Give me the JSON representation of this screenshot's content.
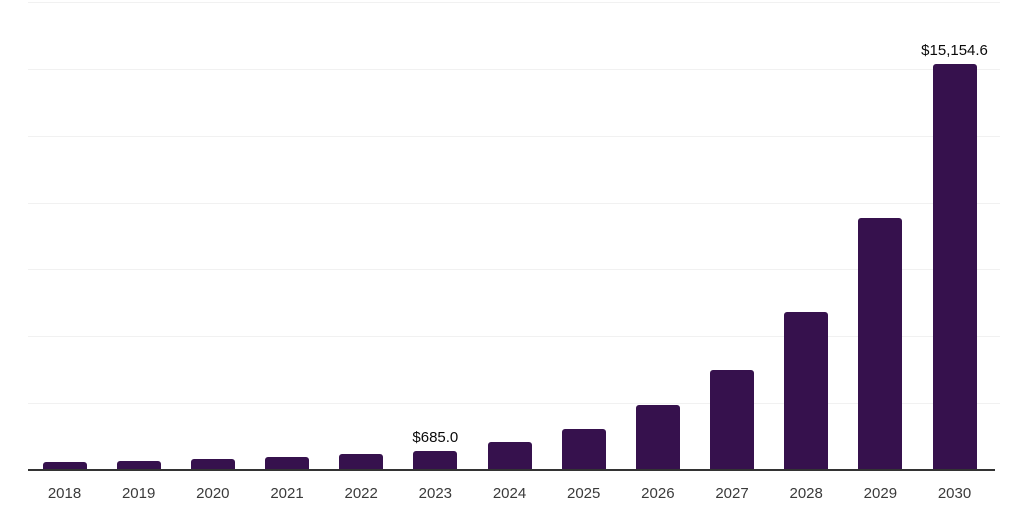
{
  "chart_data": {
    "type": "bar",
    "title": "",
    "xlabel": "",
    "ylabel": "",
    "categories": [
      "2018",
      "2019",
      "2020",
      "2021",
      "2022",
      "2023",
      "2024",
      "2025",
      "2026",
      "2027",
      "2028",
      "2029",
      "2030"
    ],
    "values": [
      250,
      290,
      365,
      440,
      550,
      685.0,
      1010,
      1515,
      2380,
      3700,
      5860,
      9400,
      15154.6
    ],
    "data_labels": {
      "2023": "$685.0",
      "2030": "$15,154.6"
    },
    "ylim": [
      0,
      17500
    ],
    "gridline_step": 2500,
    "grid": "horizontal-only",
    "legend_position": "none",
    "y_tick_labels_visible": false,
    "colors": {
      "bar": "#36114D",
      "gridline": "#F1F1F1",
      "axis_line": "#333333",
      "tick_label": "#3A3A3A",
      "data_label": "#0A0A0A",
      "background": "#FFFFFF"
    }
  }
}
